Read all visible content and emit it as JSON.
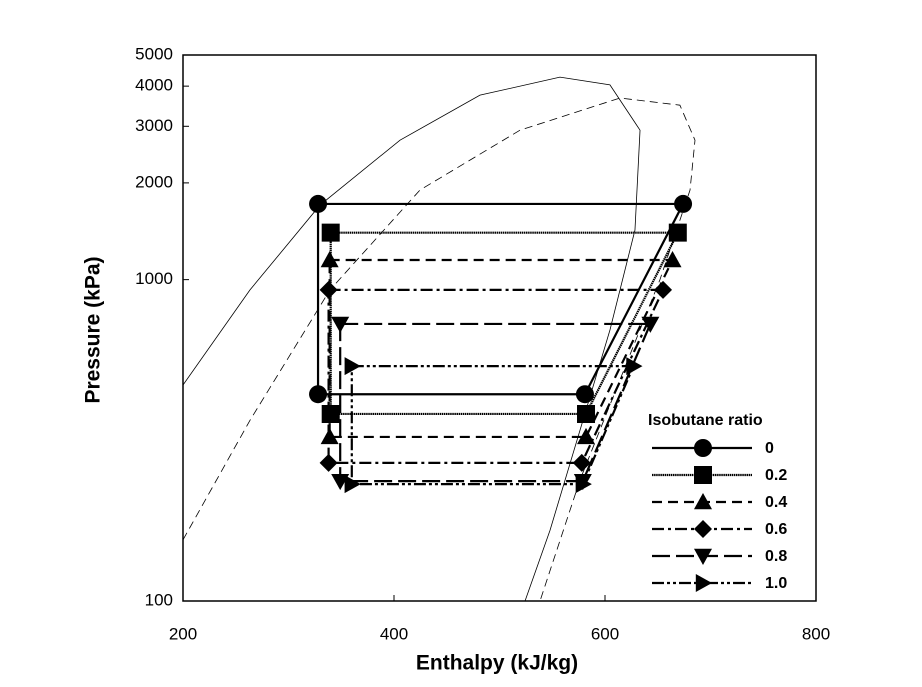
{
  "chart_data": {
    "type": "line",
    "ylog": true,
    "x_label": "Enthalpy (kJ/kg)",
    "y_label": "Pressure (kPa)",
    "xlim": [
      200,
      800
    ],
    "xticks": [
      200,
      400,
      600,
      800
    ],
    "ylim": [
      100,
      5000
    ],
    "yticks": [
      100,
      1000,
      2000,
      3000,
      4000,
      5000
    ],
    "legend_title": "Isobutane ratio",
    "legend_position": "lower right",
    "saturation_curves": [
      {
        "dash": "solid",
        "x": [
          200,
          263.5,
          329.9,
          405.7,
          481.5,
          557.3,
          604.7,
          633.2,
          628.4,
          604.7,
          576.3,
          547.9,
          524.2
        ],
        "y": [
          470,
          929,
          1706,
          2716,
          3750,
          4266,
          4036,
          2917,
          1426,
          697,
          340,
          166,
          100
        ]
      },
      {
        "dash": "dashed",
        "x": [
          200,
          263.5,
          339.3,
          424.6,
          519.4,
          614.2,
          671,
          685.3,
          680.6,
          652.1,
          614.2,
          576.3,
          538.4
        ],
        "y": [
          155,
          365,
          929,
          1900,
          2917,
          3674,
          3490,
          2716,
          1900,
          1000,
          488,
          238,
          100
        ]
      }
    ],
    "series": [
      {
        "name": "0",
        "color": "#000000",
        "marker": "circle",
        "dash": "",
        "x": [
          328,
          674,
          581,
          328
        ],
        "values": [
          1720,
          1720,
          440,
          440
        ]
      },
      {
        "name": "0.2",
        "color": "#000000",
        "marker": "square",
        "dash": "1.5 0.6",
        "x": [
          340,
          669,
          582,
          340
        ],
        "values": [
          1400,
          1400,
          382,
          382
        ]
      },
      {
        "name": "0.4",
        "color": "#000000",
        "marker": "triangle-up",
        "dash": "10 6",
        "x": [
          339,
          664,
          582,
          339
        ],
        "values": [
          1151,
          1151,
          324,
          324
        ]
      },
      {
        "name": "0.6",
        "color": "#000000",
        "marker": "diamond",
        "dash": "12 4 3 4",
        "x": [
          338,
          655,
          578,
          338
        ],
        "values": [
          929,
          929,
          269,
          269
        ]
      },
      {
        "name": "0.8",
        "color": "#000000",
        "marker": "triangle-down",
        "dash": "18 6",
        "x": [
          349,
          643,
          579,
          349
        ],
        "values": [
          728,
          728,
          236,
          236
        ]
      },
      {
        "name": "1.0",
        "color": "#000000",
        "marker": "triangle-right",
        "dash": "12 3 3 3 3 3",
        "x": [
          360,
          627,
          579,
          360
        ],
        "values": [
          538,
          538,
          231,
          231
        ]
      }
    ]
  }
}
